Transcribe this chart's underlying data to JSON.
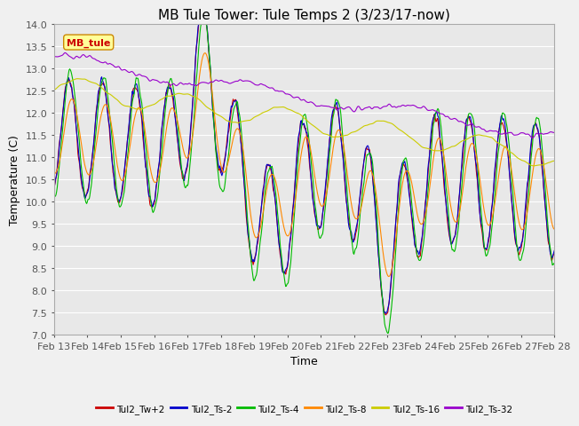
{
  "title": "MB Tule Tower: Tule Temps 2 (3/23/17-now)",
  "xlabel": "Time",
  "ylabel": "Temperature (C)",
  "ylim": [
    7.0,
    14.0
  ],
  "yticks": [
    7.0,
    7.5,
    8.0,
    8.5,
    9.0,
    9.5,
    10.0,
    10.5,
    11.0,
    11.5,
    12.0,
    12.5,
    13.0,
    13.5,
    14.0
  ],
  "xtick_labels": [
    "Feb 13",
    "Feb 14",
    "Feb 15",
    "Feb 16",
    "Feb 17",
    "Feb 18",
    "Feb 19",
    "Feb 20",
    "Feb 21",
    "Feb 22",
    "Feb 23",
    "Feb 24",
    "Feb 25",
    "Feb 26",
    "Feb 27",
    "Feb 28"
  ],
  "series_colors": [
    "#cc0000",
    "#0000cc",
    "#00bb00",
    "#ff8800",
    "#cccc00",
    "#9900cc"
  ],
  "series_names": [
    "Tul2_Tw+2",
    "Tul2_Ts-2",
    "Tul2_Ts-4",
    "Tul2_Ts-8",
    "Tul2_Ts-16",
    "Tul2_Ts-32"
  ],
  "legend_label": "MB_tule",
  "background_color": "#f0f0f0",
  "plot_bg_color": "#e8e8e8",
  "grid_color": "#ffffff",
  "title_fontsize": 11,
  "axis_fontsize": 9,
  "tick_fontsize": 8
}
